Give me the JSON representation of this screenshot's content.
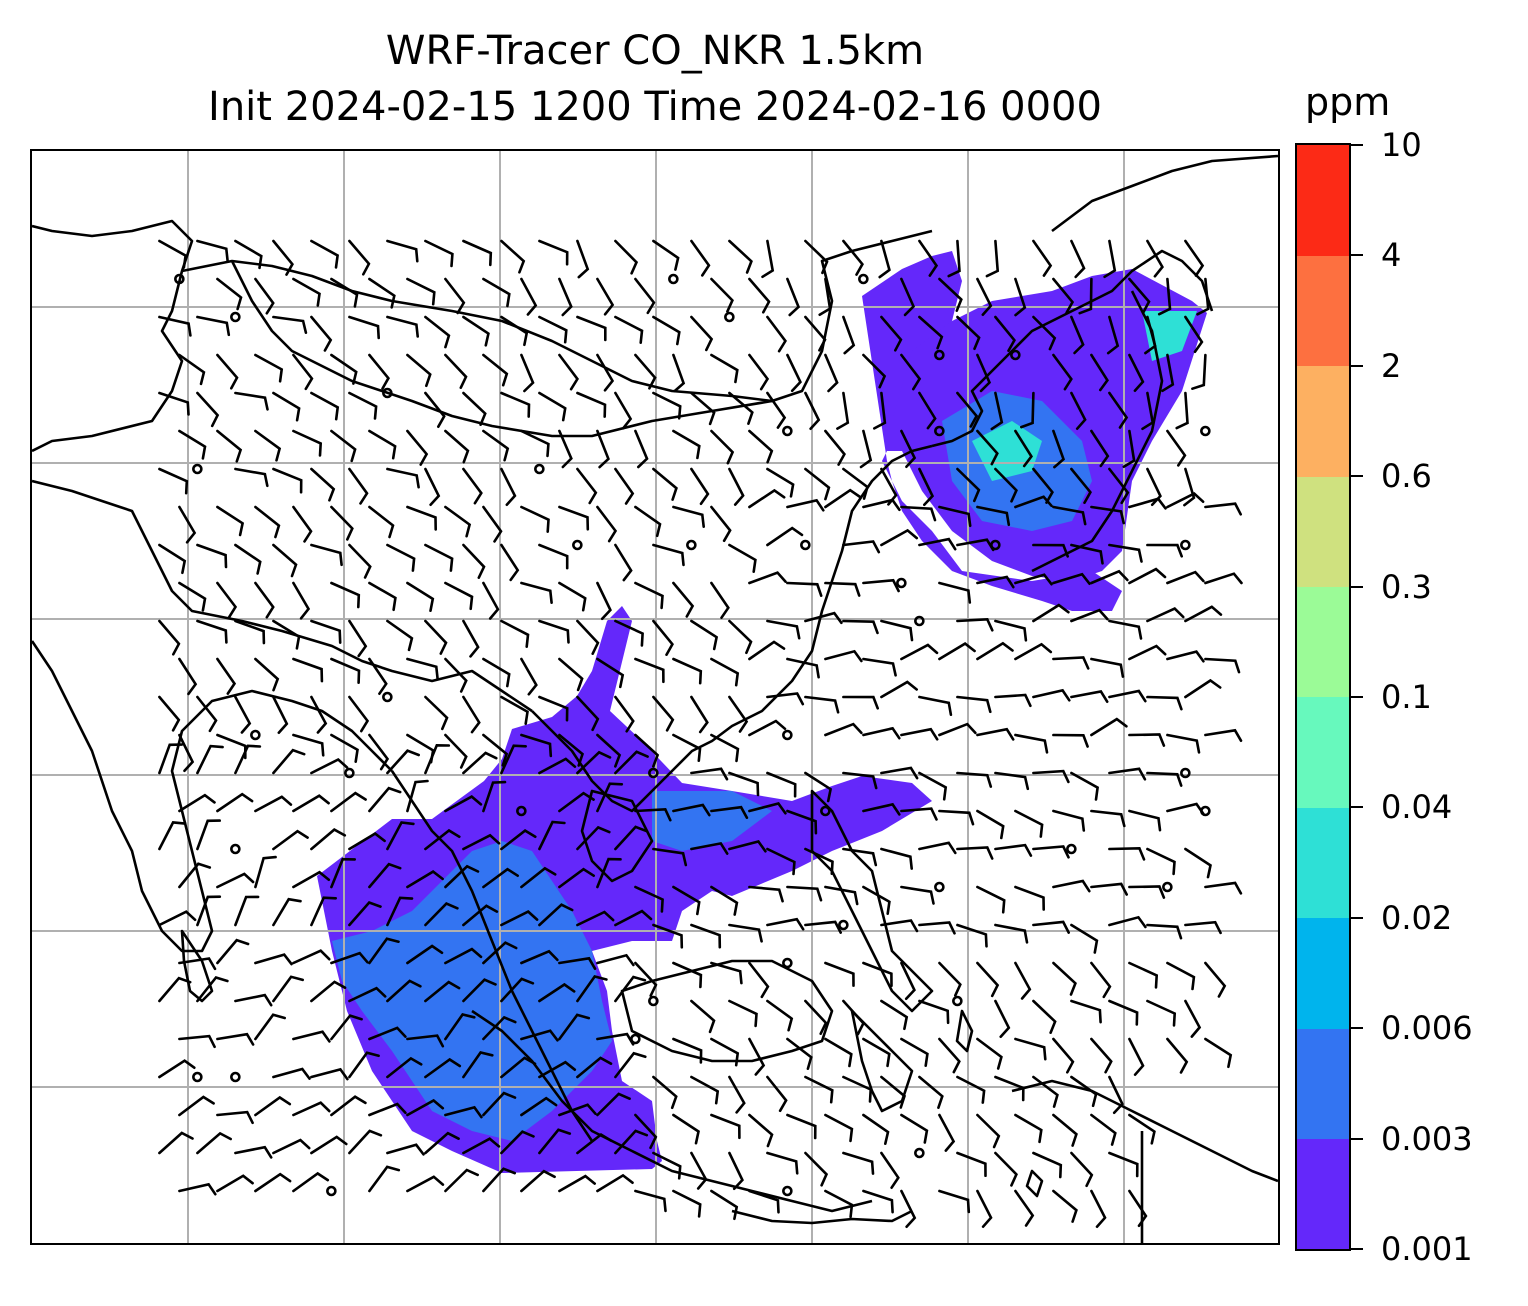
{
  "title": {
    "line1": "WRF-Tracer CO_NKR 1.5km",
    "line2": "Init 2024-02-15 1200 Time 2024-02-16 0000"
  },
  "colorbar": {
    "unit": "ppm",
    "levels": [
      "0.001",
      "0.003",
      "0.006",
      "0.02",
      "0.04",
      "0.1",
      "0.3",
      "0.6",
      "2",
      "4",
      "10"
    ],
    "colors": [
      "#6428fa",
      "#3374f2",
      "#00b4ed",
      "#2ee0d6",
      "#67f9bd",
      "#9bfb97",
      "#cfe17f",
      "#fdb061",
      "#fd7040",
      "#fc2a16"
    ]
  },
  "map": {
    "grid_color": "#b0b0b0",
    "coast_color": "#000000",
    "barb_color": "#000000",
    "plume_colors": {
      "low": "#6428fa",
      "mid": "#3374f2",
      "high": "#2ee0d6"
    }
  }
}
